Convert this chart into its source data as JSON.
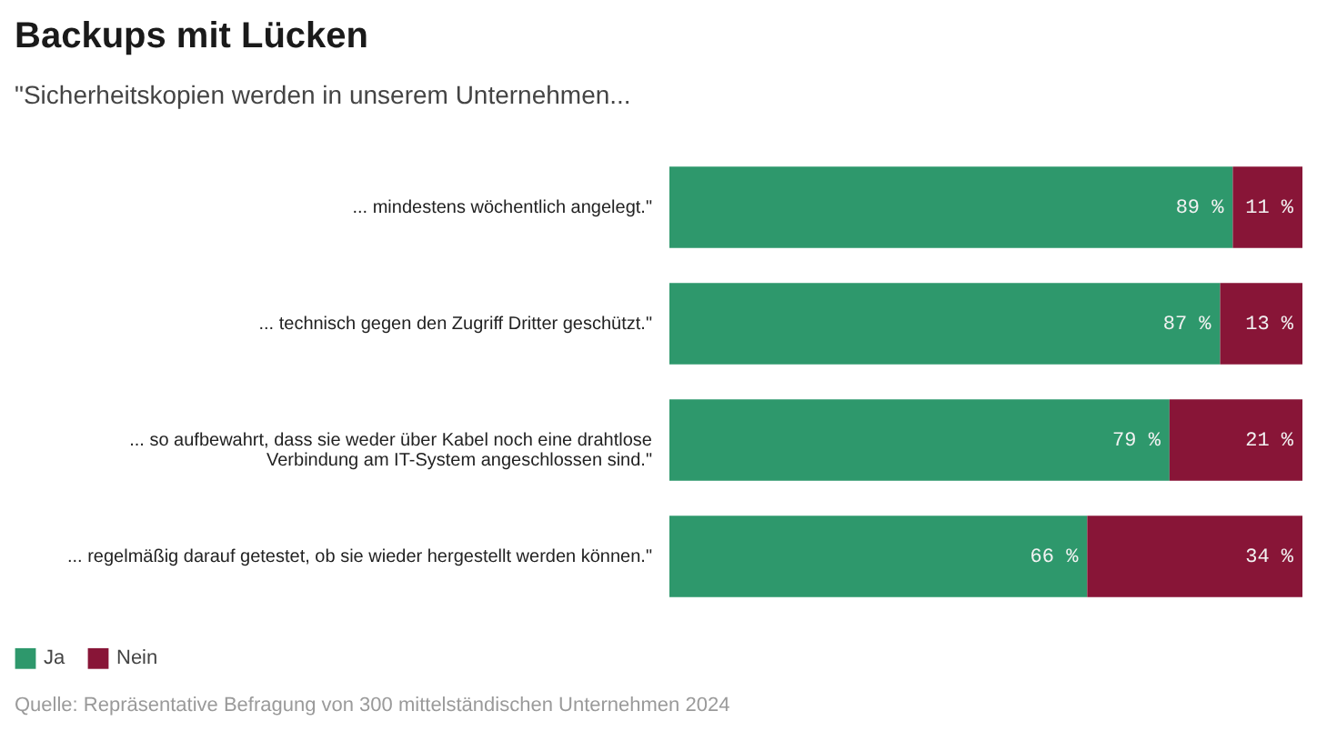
{
  "chart_data": {
    "type": "bar",
    "orientation": "horizontal",
    "stacked": true,
    "title": "Backups mit Lücken",
    "subtitle": "\"Sicherheitskopien werden in unserem Unternehmen...",
    "categories": [
      "... mindestens wöchentlich angelegt.\"",
      "... technisch gegen den Zugriff Dritter geschützt.\"",
      "... so aufbewahrt, dass sie weder über Kabel noch eine drahtlose\nVerbindung am IT-System angeschlossen sind.\"",
      "... regelmäßig darauf getestet, ob sie wieder hergestellt werden können.\""
    ],
    "series": [
      {
        "name": "Ja",
        "color": "#2e986c",
        "values": [
          89,
          87,
          79,
          66
        ],
        "value_labels": [
          "89 %",
          "87 %",
          "79 %",
          "66 %"
        ]
      },
      {
        "name": "Nein",
        "color": "#881537",
        "values": [
          11,
          13,
          21,
          34
        ],
        "value_labels": [
          "11 %",
          "13 %",
          "21 %",
          "34 %"
        ]
      }
    ],
    "xlim": [
      0,
      100
    ],
    "tick_labels": "y",
    "legend": "bottom left",
    "annotations": [
      "Quelle: Repräsentative Befragung von 300 mittelständischen Unternehmen 2024"
    ]
  }
}
